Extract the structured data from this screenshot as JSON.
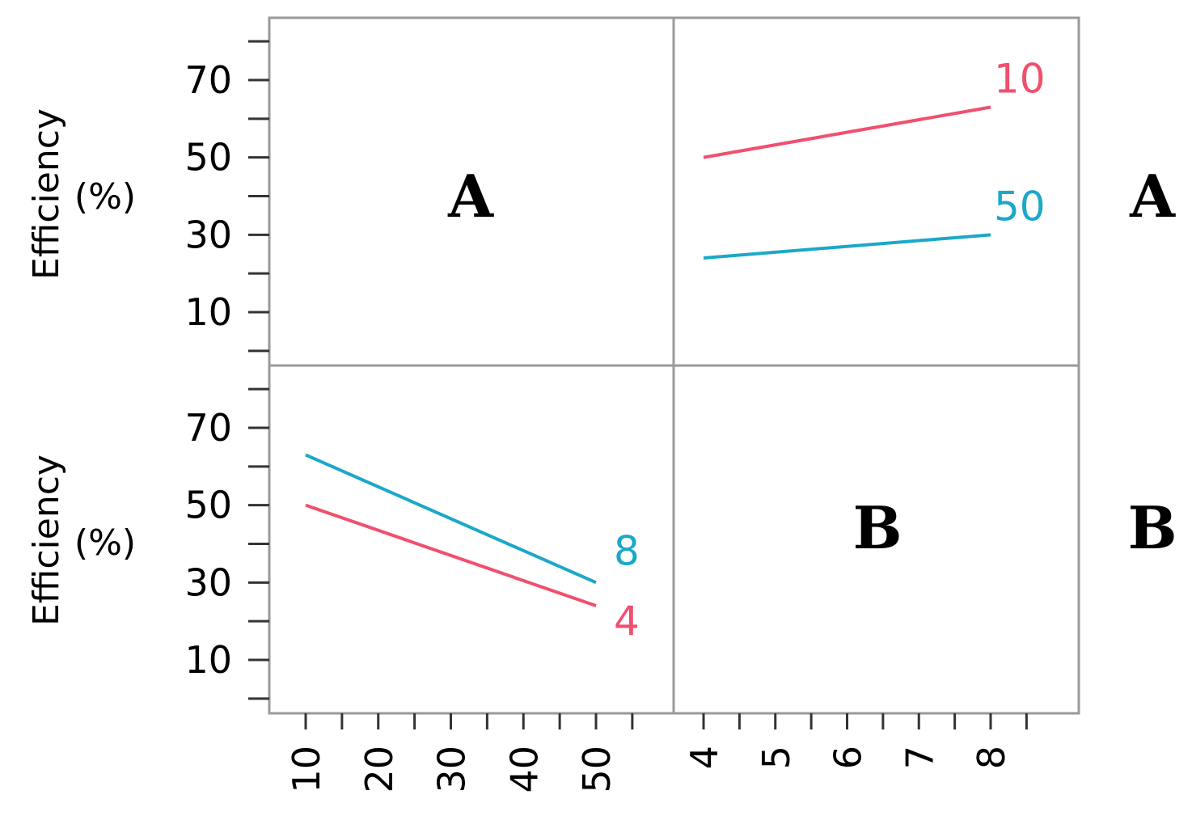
{
  "chart_data": {
    "type": "line",
    "title": "",
    "ylabel": [
      "Efficiency",
      "(%)"
    ],
    "ylim": [
      0,
      80
    ],
    "yticks": [
      10,
      30,
      50,
      70
    ],
    "panels": [
      {
        "id": "top-left",
        "label": "A",
        "series": []
      },
      {
        "id": "top-right",
        "x_factor": "B",
        "x": [
          4,
          8
        ],
        "series": [
          {
            "name": "10",
            "color": "#f0506e",
            "values": [
              50,
              63
            ]
          },
          {
            "name": "50",
            "color": "#1ba8c9",
            "values": [
              24,
              30
            ]
          }
        ]
      },
      {
        "id": "bottom-left",
        "x_factor": "A",
        "x": [
          10,
          50
        ],
        "series": [
          {
            "name": "8",
            "color": "#1ba8c9",
            "values": [
              63,
              30
            ]
          },
          {
            "name": "4",
            "color": "#f0506e",
            "values": [
              50,
              24
            ]
          }
        ]
      },
      {
        "id": "bottom-right",
        "label": "B",
        "series": []
      }
    ],
    "row_labels": [
      "A",
      "B"
    ],
    "x_axes": [
      {
        "factor": "A",
        "ticks": [
          "10",
          "20",
          "30",
          "40",
          "50"
        ],
        "values": [
          10,
          20,
          30,
          40,
          50
        ]
      },
      {
        "factor": "B",
        "ticks": [
          "4",
          "5",
          "6",
          "7",
          "8"
        ],
        "values": [
          4,
          5,
          6,
          7,
          8
        ]
      }
    ]
  }
}
